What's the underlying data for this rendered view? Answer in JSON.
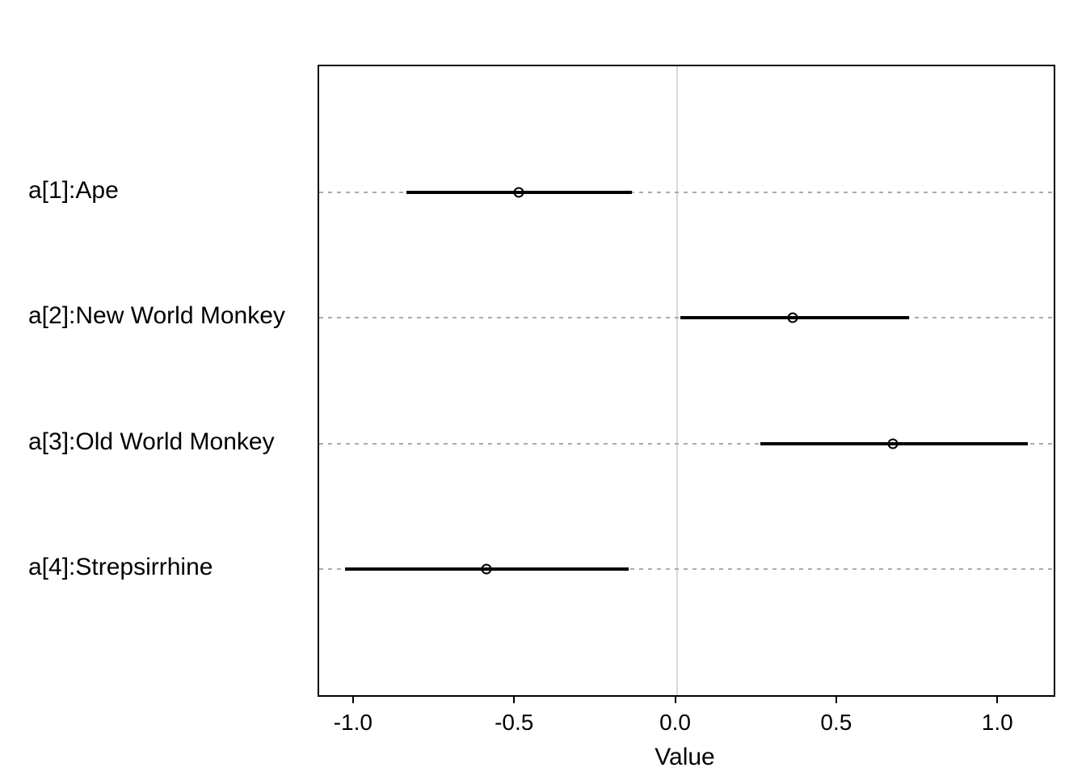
{
  "chart_data": {
    "type": "scatter",
    "subtype": "dot-interval-coefficient-plot",
    "title": "",
    "xlabel": "Value",
    "ylabel": "",
    "xlim": [
      -1.11,
      1.17
    ],
    "xticks": {
      "values": [
        -1.0,
        -0.5,
        0.0,
        0.5,
        1.0
      ],
      "labels": [
        "-1.0",
        "-0.5",
        "0.0",
        "0.5",
        "1.0"
      ]
    },
    "reference_line_x": 0,
    "grid": {
      "horizontal_dashed": true,
      "vertical_zero_line": true,
      "legend": "none"
    },
    "categories": [
      "a[1]:Ape",
      "a[2]:New World Monkey",
      "a[3]:Old World Monkey",
      "a[4]:Strepsirrhine"
    ],
    "points": [
      {
        "label": "a[1]:Ape",
        "estimate": -0.49,
        "lower": -0.84,
        "upper": -0.14
      },
      {
        "label": "a[2]:New World Monkey",
        "estimate": 0.36,
        "lower": 0.01,
        "upper": 0.72
      },
      {
        "label": "a[3]:Old World Monkey",
        "estimate": 0.67,
        "lower": 0.26,
        "upper": 1.09
      },
      {
        "label": "a[4]:Strepsirrhine",
        "estimate": -0.59,
        "lower": -1.03,
        "upper": -0.15
      }
    ],
    "colors": {
      "interval_line": "#000000",
      "marker_stroke": "#000000",
      "dashed_grid": "#ababab",
      "zero_line": "#d9d9d9",
      "box_border": "#000000",
      "text": "#000000",
      "background": "#ffffff"
    }
  }
}
